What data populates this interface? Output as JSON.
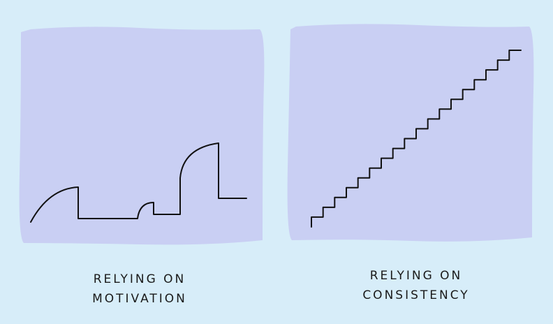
{
  "panels": [
    {
      "caption": [
        "RELYING ON",
        "MOTIVATION"
      ]
    },
    {
      "caption": [
        "RELYING ON",
        "CONSISTENCY"
      ]
    }
  ]
}
